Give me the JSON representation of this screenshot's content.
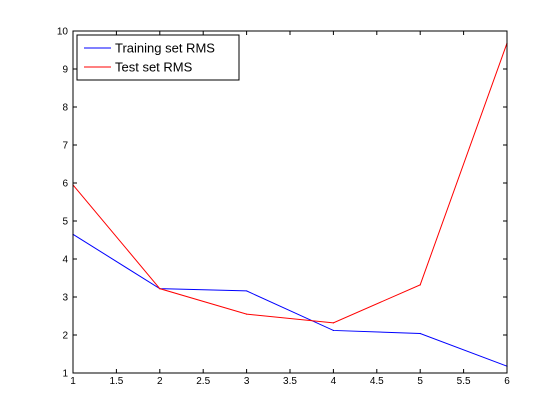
{
  "chart_data": {
    "type": "line",
    "title": "",
    "xlabel": "",
    "ylabel": "",
    "xlim": [
      1,
      6
    ],
    "ylim": [
      1,
      10
    ],
    "x_ticks": [
      1,
      1.5,
      2,
      2.5,
      3,
      3.5,
      4,
      4.5,
      5,
      5.5,
      6
    ],
    "x_tick_labels": [
      "1",
      "1.5",
      "2",
      "2.5",
      "3",
      "3.5",
      "4",
      "4.5",
      "5",
      "5.5",
      "6"
    ],
    "y_ticks": [
      1,
      2,
      3,
      4,
      5,
      6,
      7,
      8,
      9,
      10
    ],
    "y_tick_labels": [
      "1",
      "2",
      "3",
      "4",
      "5",
      "6",
      "7",
      "8",
      "9",
      "10"
    ],
    "grid": false,
    "legend_position": "top-left",
    "x": [
      1,
      2,
      3,
      4,
      5,
      6
    ],
    "series": [
      {
        "name": "Training set RMS",
        "color": "#0000ff",
        "values": [
          4.65,
          3.22,
          3.16,
          2.12,
          2.04,
          1.18
        ]
      },
      {
        "name": "Test set RMS",
        "color": "#ff0000",
        "values": [
          5.95,
          3.22,
          2.55,
          2.32,
          3.32,
          9.68
        ]
      }
    ]
  }
}
